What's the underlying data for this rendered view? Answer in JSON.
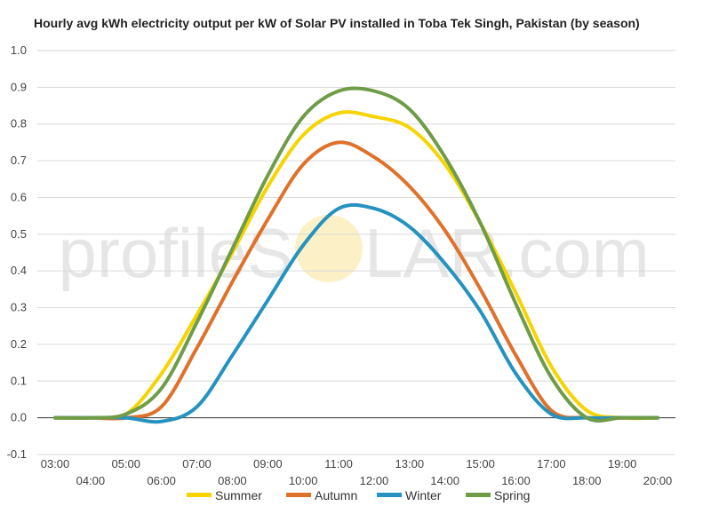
{
  "chart_data": {
    "type": "line",
    "title": "Hourly avg kWh electricity output per kW of Solar PV installed in Toba Tek Singh, Pakistan (by season)",
    "watermark": {
      "left": "profileS",
      "right": "LAR.com"
    },
    "xlabel": "",
    "ylabel": "",
    "ylim": [
      -0.1,
      1.0
    ],
    "yticks": [
      "-0.1",
      "0.0",
      "0.1",
      "0.2",
      "0.3",
      "0.4",
      "0.5",
      "0.6",
      "0.7",
      "0.8",
      "0.9",
      "1.0"
    ],
    "x": [
      "03:00",
      "04:00",
      "05:00",
      "06:00",
      "07:00",
      "08:00",
      "09:00",
      "10:00",
      "11:00",
      "12:00",
      "13:00",
      "14:00",
      "15:00",
      "16:00",
      "17:00",
      "18:00",
      "19:00",
      "20:00"
    ],
    "grid": true,
    "legend_position": "bottom",
    "series": [
      {
        "name": "Summer",
        "color": "#f5d400",
        "values": [
          0.0,
          0.0,
          0.01,
          0.12,
          0.28,
          0.45,
          0.63,
          0.77,
          0.83,
          0.82,
          0.79,
          0.69,
          0.53,
          0.34,
          0.14,
          0.02,
          0.0,
          0.0
        ]
      },
      {
        "name": "Autumn",
        "color": "#e0712a",
        "values": [
          0.0,
          0.0,
          0.0,
          0.03,
          0.19,
          0.37,
          0.54,
          0.69,
          0.75,
          0.71,
          0.63,
          0.51,
          0.35,
          0.17,
          0.02,
          0.0,
          0.0,
          0.0
        ]
      },
      {
        "name": "Winter",
        "color": "#2592c0",
        "values": [
          0.0,
          0.0,
          0.0,
          -0.01,
          0.03,
          0.17,
          0.32,
          0.47,
          0.57,
          0.57,
          0.52,
          0.42,
          0.29,
          0.12,
          0.01,
          0.0,
          0.0,
          0.0
        ]
      },
      {
        "name": "Spring",
        "color": "#6f9c47",
        "values": [
          0.0,
          0.0,
          0.01,
          0.08,
          0.26,
          0.46,
          0.66,
          0.82,
          0.89,
          0.89,
          0.84,
          0.71,
          0.53,
          0.31,
          0.11,
          0.0,
          0.0,
          0.0
        ]
      }
    ]
  }
}
